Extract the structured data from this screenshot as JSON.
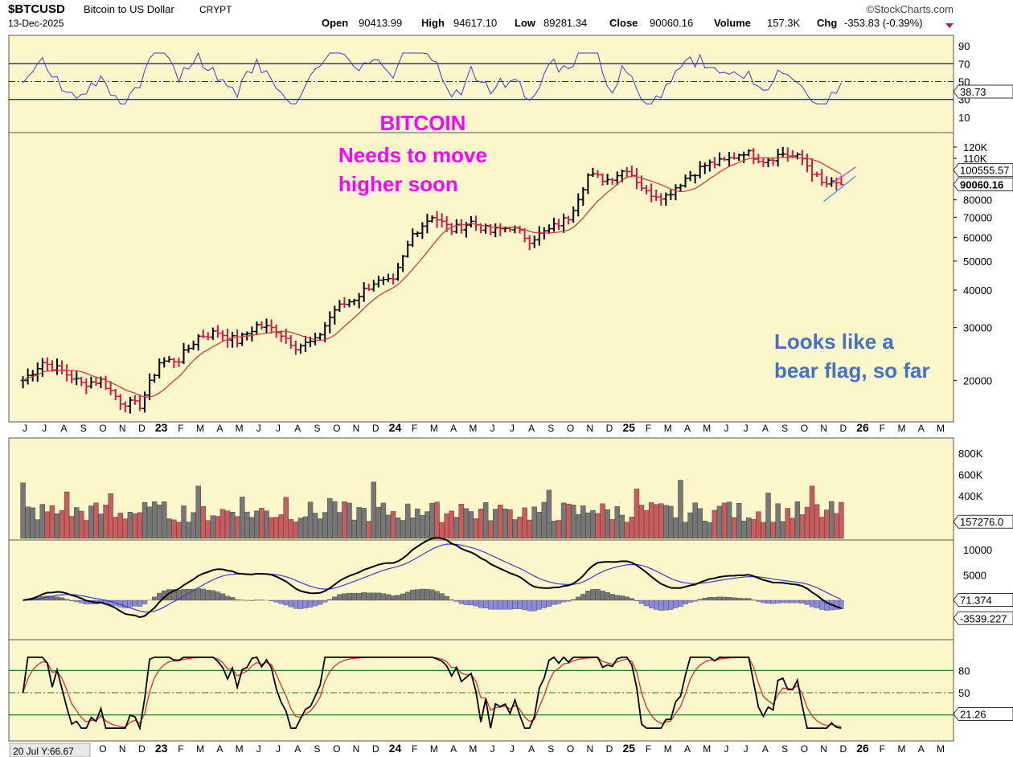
{
  "header": {
    "symbol": "$BTCUSD",
    "name": "Bitcoin to US Dollar",
    "exchange": "CRYPT",
    "date": "13-Dec-2025",
    "watermark": "©StockCharts.com",
    "open_label": "Open",
    "open": "90413.99",
    "high_label": "High",
    "high": "94617.10",
    "low_label": "Low",
    "low": "89281.34",
    "close_label": "Close",
    "close": "90060.16",
    "volume_label": "Volume",
    "volume": "157.3K",
    "chg_label": "Chg",
    "chg": "-353.83 (-0.39%)"
  },
  "annotations": {
    "title_line1": "BITCOIN",
    "title_line2": "Needs to move",
    "title_line3": "higher soon",
    "note_line1": "Looks like a",
    "note_line2": "bear flag, so far",
    "title_color": "#ff00ff",
    "note_color": "#4472c4"
  },
  "colors": {
    "panel_bg": "#fbf7cb",
    "up_bar": "#000000",
    "down_bar": "#d8143c",
    "ma_line": "#d83a3a",
    "indicator_line": "#3b3bcf",
    "vol_up": "#777777",
    "vol_down": "#c95c5c",
    "hist": "#8a8ad8"
  },
  "time_axis": {
    "labels": [
      "J",
      "J",
      "A",
      "S",
      "O",
      "N",
      "D",
      "23",
      "F",
      "M",
      "A",
      "M",
      "J",
      "J",
      "A",
      "S",
      "O",
      "N",
      "D",
      "24",
      "F",
      "M",
      "A",
      "M",
      "J",
      "J",
      "A",
      "S",
      "O",
      "N",
      "D",
      "25",
      "F",
      "M",
      "A",
      "M",
      "J",
      "J",
      "A",
      "S",
      "O",
      "N",
      "D",
      "26",
      "F",
      "M",
      "A",
      "M"
    ],
    "bottom_tag": "20 Jul Y:66.67"
  },
  "rsi_panel": {
    "ticks": [
      "90",
      "70",
      "50",
      "30",
      "10"
    ],
    "value_tag": "38.73"
  },
  "price_panel": {
    "ticks": [
      "120K",
      "110K",
      "80000",
      "70000",
      "60000",
      "50000",
      "40000",
      "30000",
      "20000"
    ],
    "ma_tag": "100555.57",
    "close_tag": "90060.16"
  },
  "volume_panel": {
    "ticks": [
      "800K",
      "600K",
      "400K"
    ],
    "value_tag": "157276.0"
  },
  "macd_panel": {
    "ticks": [
      "10000",
      "5000"
    ],
    "value_tag1": "71.374",
    "value_tag2": "-3539.227"
  },
  "stoch_panel": {
    "ticks": [
      "80",
      "50"
    ],
    "value_tag": "21.26"
  },
  "chart_data": {
    "type": "line",
    "title": "$BTCUSD Bitcoin to US Dollar CRYPT",
    "x": [
      "Jun-22",
      "Jul-22",
      "Aug-22",
      "Sep-22",
      "Oct-22",
      "Nov-22",
      "Dec-22",
      "Jan-23",
      "Feb-23",
      "Mar-23",
      "Apr-23",
      "May-23",
      "Jun-23",
      "Jul-23",
      "Aug-23",
      "Sep-23",
      "Oct-23",
      "Nov-23",
      "Dec-23",
      "Jan-24",
      "Feb-24",
      "Mar-24",
      "Apr-24",
      "May-24",
      "Jun-24",
      "Jul-24",
      "Aug-24",
      "Sep-24",
      "Oct-24",
      "Nov-24",
      "Dec-24",
      "Jan-25",
      "Feb-25",
      "Mar-25",
      "Apr-25",
      "May-25",
      "Jun-25",
      "Jul-25",
      "Aug-25",
      "Sep-25",
      "Oct-25",
      "Nov-25",
      "Dec-25"
    ],
    "series": [
      {
        "values": [
          20000,
          23000,
          21500,
          19500,
          20000,
          17000,
          16500,
          23000,
          23500,
          28000,
          29000,
          27000,
          30500,
          29500,
          26000,
          27000,
          34500,
          37500,
          42500,
          42500,
          61500,
          71000,
          63500,
          67500,
          62500,
          65000,
          59000,
          63500,
          70000,
          96500,
          93500,
          102000,
          84500,
          82500,
          94500,
          104500,
          107500,
          116000,
          108500,
          114000,
          109500,
          90500,
          90060
        ]
      }
    ],
    "ylim": [
      15000,
      130000
    ],
    "log_scale": true,
    "grid": false
  }
}
